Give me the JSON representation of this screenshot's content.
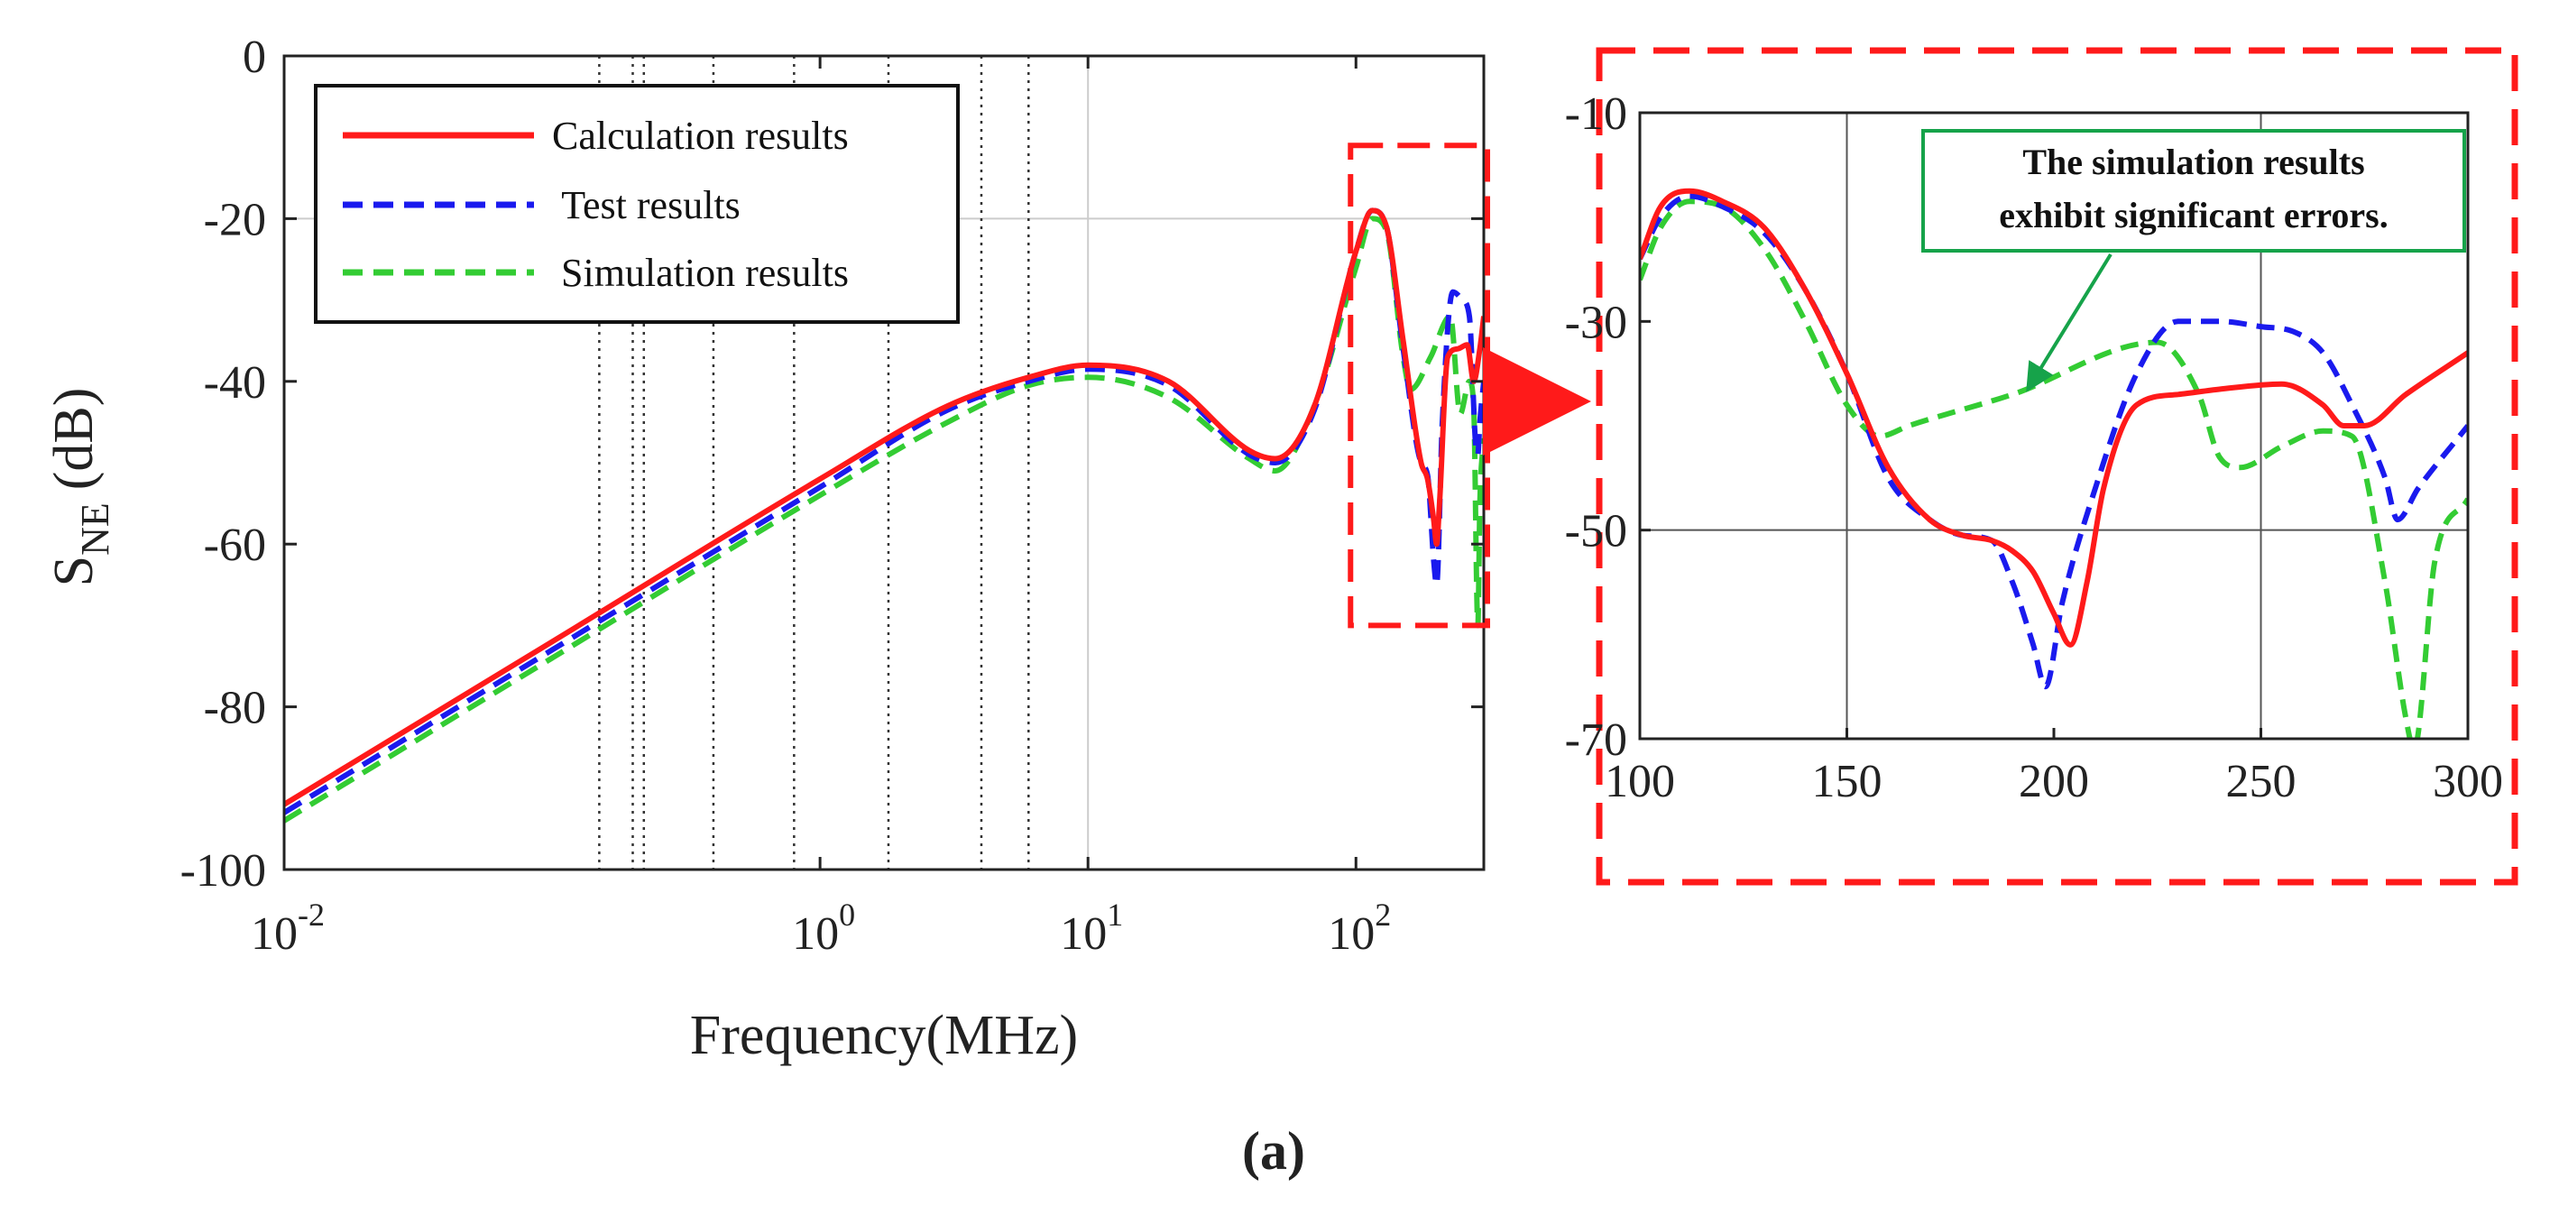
{
  "colors": {
    "calculation": "#ff1a1a",
    "test": "#1a1aee",
    "simulation": "#33cc33",
    "zoom_box": "#ff1a1a",
    "note_border": "#16a34a",
    "note_arrow": "#16a34a",
    "grid": "#cccccc",
    "axis": "#222222"
  },
  "chart_data": [
    {
      "id": "main",
      "type": "line",
      "xscale": "log",
      "xlim": [
        0.01,
        300
      ],
      "ylim": [
        -100,
        0
      ],
      "xlabel": "Frequency(MHz)",
      "ylabel_main": "S",
      "ylabel_sub": "NE",
      "ylabel_unit": "(dB)",
      "xticks": [
        {
          "value": 0.01,
          "base": "10",
          "exp": "-2"
        },
        {
          "value": 1,
          "base": "10",
          "exp": "0"
        },
        {
          "value": 10,
          "base": "10",
          "exp": "1"
        },
        {
          "value": 100,
          "base": "10",
          "exp": "2"
        }
      ],
      "yticks": [
        {
          "value": 0,
          "label": "0"
        },
        {
          "value": -20,
          "label": "-20"
        },
        {
          "value": -40,
          "label": "-40"
        },
        {
          "value": -60,
          "label": "-60"
        },
        {
          "value": -80,
          "label": "-80"
        },
        {
          "value": -100,
          "label": "-100"
        }
      ],
      "dotted_vlines": [
        0.15,
        0.2,
        0.22,
        0.4,
        0.8,
        1.8,
        4,
        6
      ],
      "legend": {
        "placement": "top-left",
        "entries": [
          {
            "label": "Calculation results",
            "series": "calculation"
          },
          {
            "label": " Test results",
            "series": "test"
          },
          {
            "label": "Simulation results",
            "series": "simulation"
          }
        ]
      },
      "series": [
        {
          "name": "calculation",
          "style": "solid",
          "x": [
            0.01,
            0.1,
            1,
            3,
            6,
            10,
            20,
            40,
            50,
            70,
            100,
            115,
            130,
            150,
            175,
            185,
            195,
            200,
            205,
            220,
            240,
            260,
            275,
            290,
            300
          ],
          "y": [
            -92,
            -72,
            -52,
            -43,
            -39.5,
            -38,
            -40,
            -48.5,
            -49.5,
            -43,
            -24,
            -19,
            -21,
            -35,
            -50,
            -52,
            -57,
            -60,
            -55,
            -37,
            -36,
            -35.5,
            -40,
            -36,
            -32
          ]
        },
        {
          "name": "test",
          "style": "dashed",
          "x": [
            0.01,
            0.1,
            1,
            3,
            6,
            10,
            20,
            40,
            50,
            70,
            100,
            115,
            130,
            150,
            175,
            185,
            195,
            200,
            210,
            230,
            250,
            265,
            280,
            285,
            290,
            300
          ],
          "y": [
            -93,
            -73,
            -53,
            -43.5,
            -40,
            -38.5,
            -40.5,
            -49,
            -50,
            -43.5,
            -24,
            -19,
            -21,
            -36,
            -50,
            -51.5,
            -62,
            -65,
            -45,
            -29,
            -30,
            -32,
            -48,
            -49,
            -45,
            -40
          ]
        },
        {
          "name": "simulation",
          "style": "dashed",
          "x": [
            0.01,
            0.1,
            1,
            3,
            6,
            10,
            20,
            40,
            50,
            70,
            100,
            115,
            130,
            150,
            160,
            190,
            225,
            245,
            265,
            275,
            285,
            290,
            300
          ],
          "y": [
            -94,
            -74,
            -54,
            -45,
            -40.5,
            -39.5,
            -42,
            -49.5,
            -51,
            -43,
            -26,
            -20,
            -21.5,
            -37,
            -41,
            -37,
            -32,
            -44,
            -40,
            -43,
            -70,
            -55,
            -47
          ]
        }
      ],
      "zoom_box": {
        "x_range": [
          100,
          300
        ],
        "y_range": [
          -70,
          -11
        ]
      }
    },
    {
      "id": "inset",
      "type": "line",
      "xlim": [
        100,
        300
      ],
      "ylim": [
        -70,
        -10
      ],
      "xticks": [
        {
          "value": 100,
          "label": "100"
        },
        {
          "value": 150,
          "label": "150"
        },
        {
          "value": 200,
          "label": "200"
        },
        {
          "value": 250,
          "label": "250"
        },
        {
          "value": 300,
          "label": "300"
        }
      ],
      "yticks": [
        {
          "value": -10,
          "label": "-10"
        },
        {
          "value": -30,
          "label": "-30"
        },
        {
          "value": -50,
          "label": "-50"
        },
        {
          "value": -70,
          "label": "-70"
        }
      ],
      "grid_x": [
        150,
        250
      ],
      "grid_y": [
        -50
      ],
      "annotation": {
        "lines": [
          "The simulation results",
          "exhibit significant errors."
        ],
        "arrow_to": {
          "x": 192,
          "y": -37
        }
      },
      "series": [
        {
          "name": "calculation",
          "style": "solid",
          "x": [
            100,
            105,
            112,
            120,
            130,
            140,
            150,
            160,
            170,
            178,
            185,
            190,
            195,
            200,
            204,
            208,
            212,
            220,
            230,
            240,
            255,
            265,
            270,
            275,
            285,
            300
          ],
          "y": [
            -24,
            -19,
            -17.5,
            -18.5,
            -21,
            -27,
            -35,
            -44,
            -49,
            -50.5,
            -51,
            -52,
            -54,
            -58,
            -61,
            -55,
            -46,
            -38,
            -37,
            -36.5,
            -36,
            -38,
            -40,
            -40,
            -37,
            -33
          ]
        },
        {
          "name": "test",
          "style": "dashed",
          "x": [
            100,
            105,
            112,
            120,
            130,
            140,
            150,
            160,
            170,
            178,
            185,
            190,
            195,
            198,
            202,
            210,
            220,
            230,
            240,
            250,
            258,
            265,
            272,
            280,
            283,
            288,
            300
          ],
          "y": [
            -24,
            -20,
            -18,
            -19,
            -21.5,
            -27,
            -35,
            -45,
            -49,
            -50.5,
            -51,
            -55,
            -61,
            -65,
            -57,
            -46,
            -35,
            -30,
            -30,
            -30.5,
            -31,
            -33,
            -38,
            -45,
            -49,
            -46,
            -40
          ]
        },
        {
          "name": "simulation",
          "style": "dashed",
          "x": [
            100,
            105,
            112,
            120,
            130,
            140,
            150,
            158,
            165,
            190,
            225,
            235,
            240,
            245,
            255,
            265,
            272,
            280,
            285,
            287,
            292,
            300
          ],
          "y": [
            -26,
            -21,
            -18.5,
            -19,
            -23,
            -30,
            -38,
            -41,
            -40,
            -37,
            -32,
            -37,
            -43,
            -44,
            -42,
            -40.5,
            -41,
            -55,
            -68,
            -71,
            -53,
            -47
          ]
        }
      ]
    }
  ],
  "caption": "(a)"
}
